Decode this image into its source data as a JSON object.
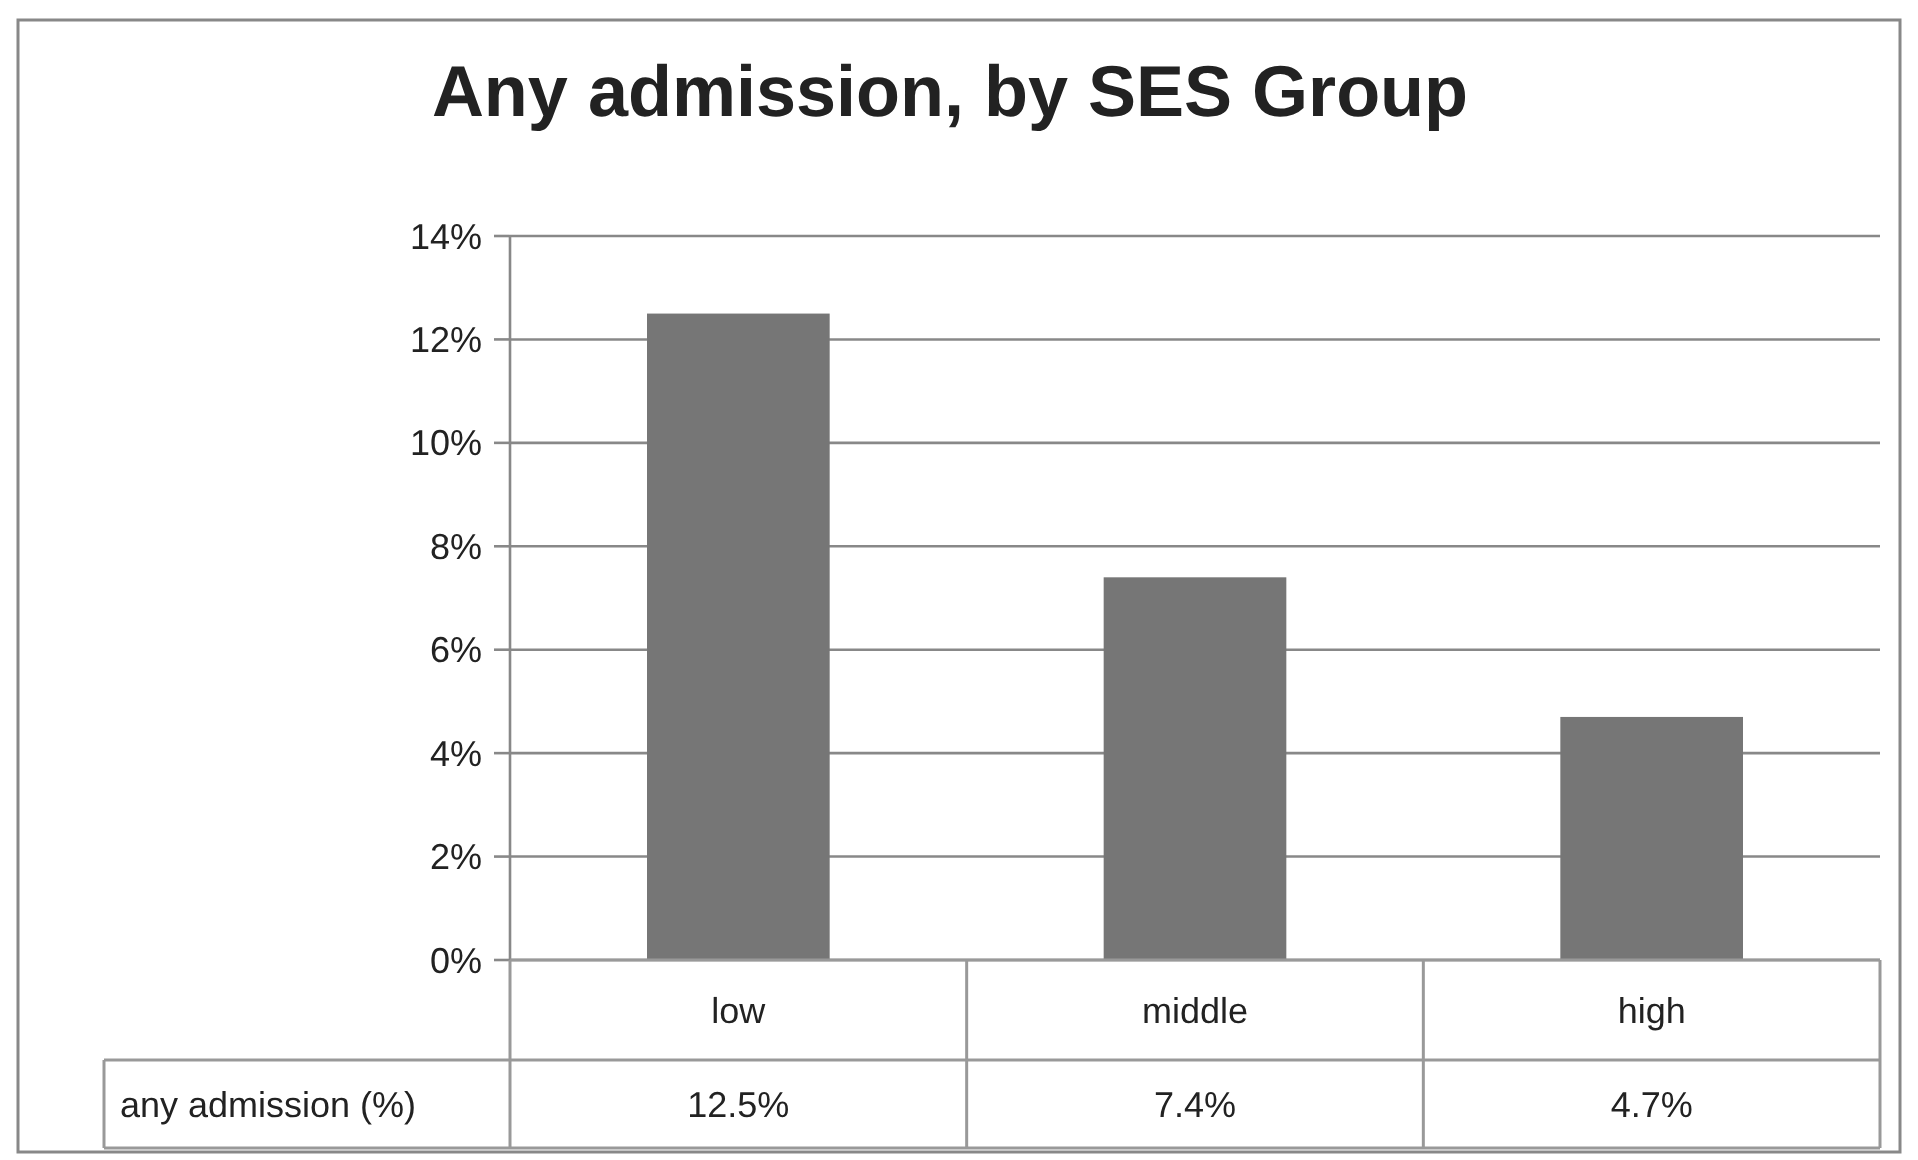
{
  "chart_data": {
    "type": "bar",
    "title": "Any admission, by SES Group",
    "categories": [
      "low",
      "middle",
      "high"
    ],
    "series": [
      {
        "name": "any admission (%)",
        "color": "#767676",
        "values": [
          12.5,
          7.4,
          4.7
        ],
        "value_labels": [
          "12.5%",
          "7.4%",
          "4.7%"
        ]
      }
    ],
    "ylim": [
      0,
      14
    ],
    "yticks": [
      {
        "value": 0,
        "label": "0%"
      },
      {
        "value": 2,
        "label": "2%"
      },
      {
        "value": 4,
        "label": "4%"
      },
      {
        "value": 6,
        "label": "6%"
      },
      {
        "value": 8,
        "label": "8%"
      },
      {
        "value": 10,
        "label": "10%"
      },
      {
        "value": 12,
        "label": "12%"
      },
      {
        "value": 14,
        "label": "14%"
      }
    ],
    "grid": "y"
  }
}
